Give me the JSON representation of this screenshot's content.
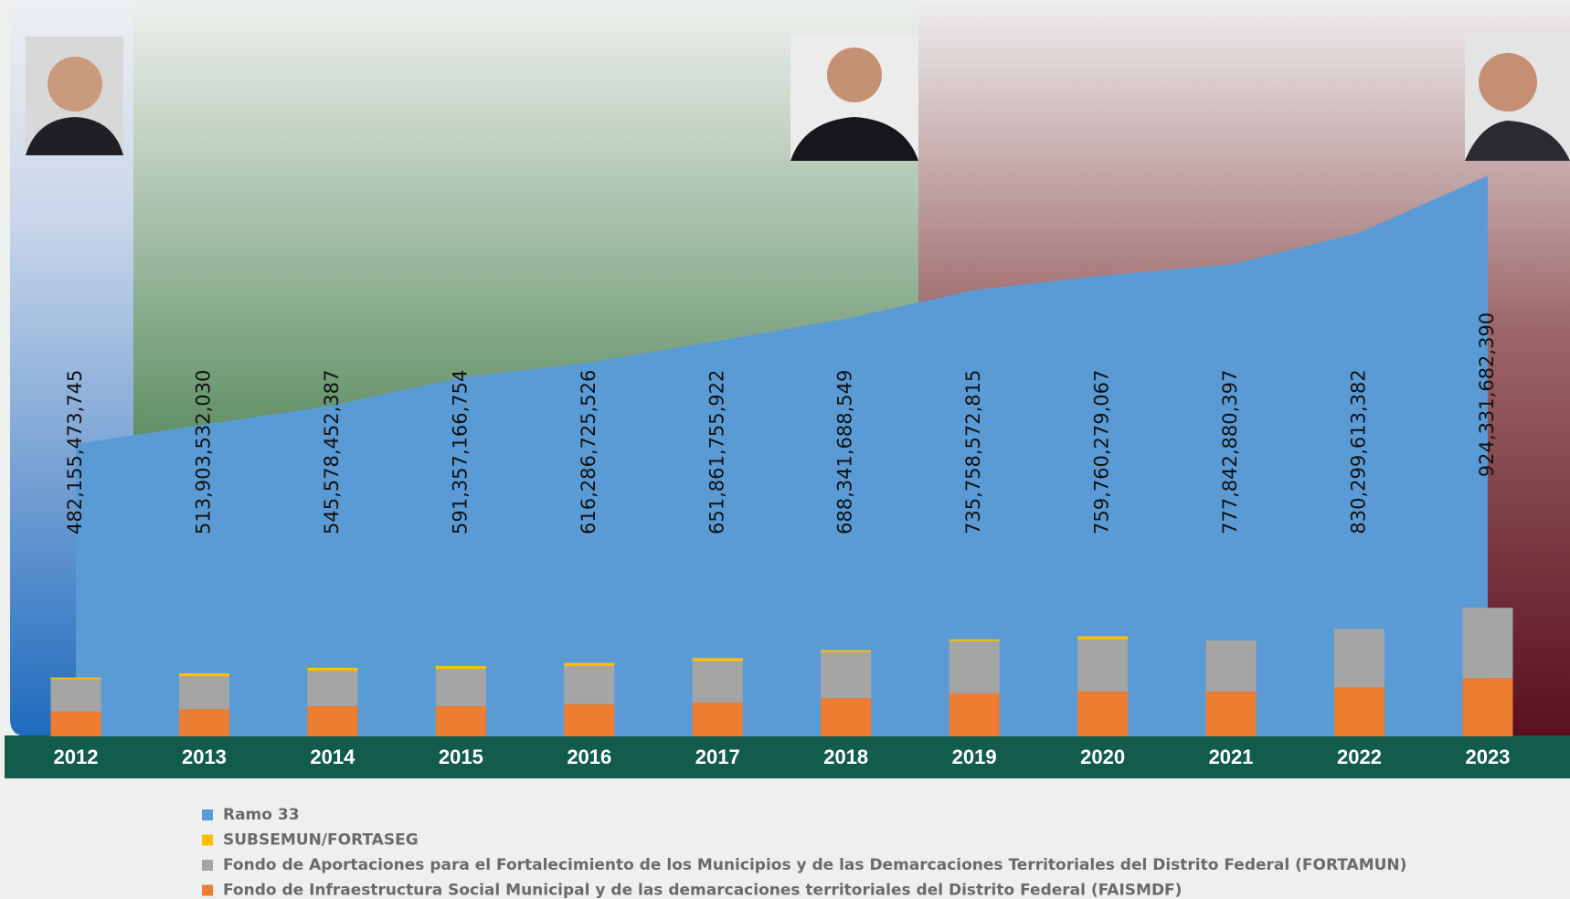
{
  "chart_data": {
    "type": "bar",
    "categories": [
      "2012",
      "2013",
      "2014",
      "2015",
      "2016",
      "2017",
      "2018",
      "2019",
      "2020",
      "2021",
      "2022",
      "2023"
    ],
    "series": [
      {
        "name": "Ramo 33",
        "type": "area",
        "color": "#5b9bd5",
        "values": [
          482155473745,
          513903532030,
          545578452387,
          591357166754,
          616286725526,
          651861755922,
          688341688549,
          735758572815,
          759760279067,
          777842880397,
          830299613382,
          924331682390
        ],
        "value_labels": [
          "482,155,473,745",
          "513,903,532,030",
          "545,578,452,387",
          "591,357,166,754",
          "616,286,725,526",
          "651,861,755,922",
          "688,341,688,549",
          "735,758,572,815",
          "759,760,279,067",
          "777,842,880,397",
          "830,299,613,382",
          "924,331,682,390"
        ]
      },
      {
        "name": "SUBSEMUN/FORTASEG",
        "color": "#ffc000",
        "values": [
          3000000000,
          5000000000,
          5000000000,
          5000000000,
          5000000000,
          5000000000,
          3000000000,
          3000000000,
          5000000000,
          0,
          0,
          0
        ]
      },
      {
        "name": "Fondo de Aportaciones para el Fortalecimiento de los Municipios y de las Demarcaciones Territoriales del Distrito Federal (FORTAMUN)",
        "color": "#a5a5a5",
        "values": [
          53000000000,
          54000000000,
          58000000000,
          61000000000,
          63000000000,
          68000000000,
          76000000000,
          86000000000,
          86000000000,
          84000000000,
          96000000000,
          116000000000
        ]
      },
      {
        "name": "Fondo de Infraestructura Social Municipal y de las demarcaciones territoriales del Distrito Federal (FAISMDF)",
        "color": "#ed7d31",
        "values": [
          41000000000,
          45000000000,
          50000000000,
          50000000000,
          53000000000,
          56000000000,
          63000000000,
          71000000000,
          74000000000,
          74000000000,
          81000000000,
          96000000000
        ]
      }
    ]
  }
}
